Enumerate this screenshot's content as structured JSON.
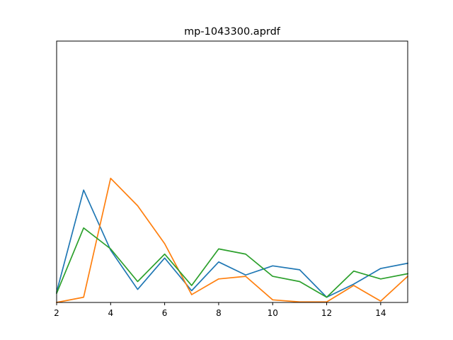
{
  "chart_data": {
    "type": "line",
    "title": "mp-1043300.aprdf",
    "xlabel": "",
    "ylabel": "",
    "x": [
      2,
      3,
      4,
      5,
      6,
      7,
      8,
      9,
      10,
      11,
      12,
      13,
      14,
      15
    ],
    "xlim": [
      2,
      15
    ],
    "ylim": [
      0,
      1
    ],
    "x_ticks": [
      2,
      4,
      6,
      8,
      10,
      12,
      14
    ],
    "y_ticks_visible": false,
    "grid": false,
    "legend": "none",
    "series": [
      {
        "color": "#1f77b4",
        "values": [
          0.04,
          0.43,
          0.2,
          0.05,
          0.17,
          0.045,
          0.155,
          0.105,
          0.14,
          0.125,
          0.02,
          0.07,
          0.13,
          0.15
        ]
      },
      {
        "color": "#ff7f0e",
        "values": [
          0.0,
          0.02,
          0.475,
          0.37,
          0.225,
          0.03,
          0.09,
          0.1,
          0.01,
          0.002,
          0.002,
          0.065,
          0.005,
          0.1
        ]
      },
      {
        "color": "#2ca02c",
        "values": [
          0.035,
          0.285,
          0.205,
          0.08,
          0.185,
          0.065,
          0.205,
          0.185,
          0.1,
          0.08,
          0.02,
          0.12,
          0.09,
          0.11
        ]
      }
    ]
  }
}
